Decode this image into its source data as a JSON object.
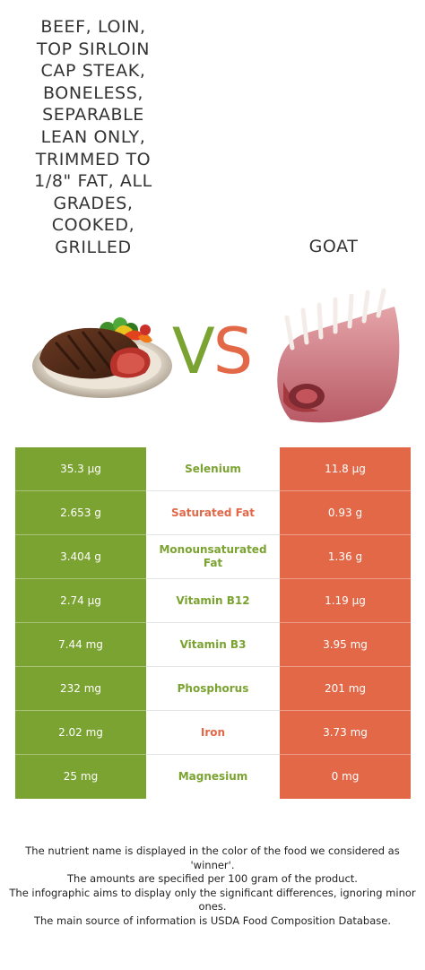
{
  "left_food": {
    "title": "Beef, loin, top sirloin cap steak, boneless, separable lean only, trimmed to 1/8\" fat, all grades, cooked, grilled",
    "title_lines": [
      "Beef, loin,",
      "top sirloin",
      "cap steak,",
      "boneless,",
      "separable",
      "lean only,",
      "trimmed to",
      "1/8\" fat, all",
      "grades,",
      "cooked,",
      "grilled"
    ],
    "color": "#7ba331",
    "image_icon": "grilled-steak-plate"
  },
  "right_food": {
    "title": "Goat",
    "color": "#e26848",
    "image_icon": "goat-rack-ribs"
  },
  "vs": {
    "v": "V",
    "s": "S"
  },
  "nutrients": [
    {
      "name": "Selenium",
      "left": "35.3 µg",
      "right": "11.8 µg",
      "winner": "left"
    },
    {
      "name": "Saturated Fat",
      "left": "2.653 g",
      "right": "0.93 g",
      "winner": "right"
    },
    {
      "name": "Monounsaturated Fat",
      "left": "3.404 g",
      "right": "1.36 g",
      "winner": "left"
    },
    {
      "name": "Vitamin B12",
      "left": "2.74 µg",
      "right": "1.19 µg",
      "winner": "left"
    },
    {
      "name": "Vitamin B3",
      "left": "7.44 mg",
      "right": "3.95 mg",
      "winner": "left"
    },
    {
      "name": "Phosphorus",
      "left": "232 mg",
      "right": "201 mg",
      "winner": "left"
    },
    {
      "name": "Iron",
      "left": "2.02 mg",
      "right": "3.73 mg",
      "winner": "right"
    },
    {
      "name": "Magnesium",
      "left": "25 mg",
      "right": "0 mg",
      "winner": "left"
    }
  ],
  "footer": {
    "line1": "The nutrient name is displayed in the color of the food we considered as 'winner'.",
    "line2": "The amounts are specified per 100 gram of the product.",
    "line3": "The infographic aims to display only the significant differences, ignoring minor ones.",
    "line4": "The main source of information is USDA Food Composition Database."
  }
}
